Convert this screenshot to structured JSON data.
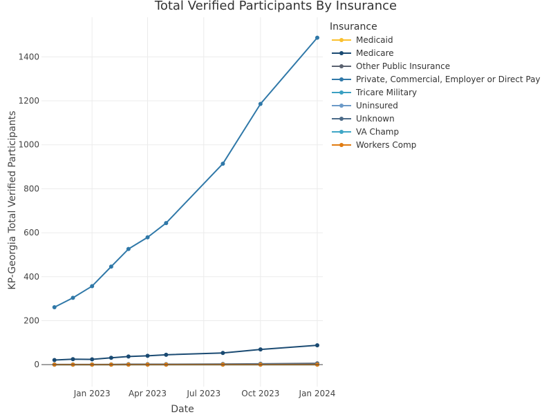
{
  "chart_data": {
    "type": "line",
    "title": "Total Verified Participants By Insurance",
    "xlabel": "Date",
    "ylabel": "KP-Georgia Total Verified Participants",
    "legend_title": "Insurance",
    "legend_position": "top-right",
    "grid": true,
    "xlim": [
      "2022-10-11",
      "2024-01-10"
    ],
    "ylim": [
      -100,
      1580
    ],
    "x_ticks": [
      {
        "value": "2023-01-01",
        "label": "Jan 2023"
      },
      {
        "value": "2023-04-01",
        "label": "Apr 2023"
      },
      {
        "value": "2023-07-01",
        "label": "Jul 2023"
      },
      {
        "value": "2023-10-01",
        "label": "Oct 2023"
      },
      {
        "value": "2024-01-01",
        "label": "Jan 2024"
      }
    ],
    "y_ticks": [
      0,
      200,
      400,
      600,
      800,
      1000,
      1200,
      1400
    ],
    "x": [
      "2022-11-01",
      "2022-12-01",
      "2023-01-01",
      "2023-02-01",
      "2023-03-01",
      "2023-04-01",
      "2023-05-01",
      "2023-08-01",
      "2023-10-01",
      "2024-01-01"
    ],
    "series": [
      {
        "name": "Medicaid",
        "color": "#fbc02d",
        "values": [
          0,
          0,
          0,
          0,
          0,
          0,
          0,
          0,
          0,
          0
        ]
      },
      {
        "name": "Medicare",
        "color": "#1a4a72",
        "values": [
          21,
          25,
          24,
          31,
          37,
          40,
          45,
          53,
          69,
          88
        ]
      },
      {
        "name": "Other Public Insurance",
        "color": "#5a6270",
        "values": [
          1,
          1,
          1,
          1,
          2,
          2,
          2,
          3,
          4,
          6
        ]
      },
      {
        "name": "Private, Commercial, Employer or Direct Pay",
        "color": "#2f78a8",
        "values": [
          261,
          304,
          357,
          446,
          526,
          579,
          644,
          914,
          1186,
          1487
        ]
      },
      {
        "name": "Tricare Military",
        "color": "#3aa0c2",
        "values": [
          0,
          0,
          0,
          0,
          0,
          0,
          0,
          0,
          0,
          0
        ]
      },
      {
        "name": "Uninsured",
        "color": "#6b9ac8",
        "values": [
          0,
          0,
          0,
          1,
          1,
          1,
          1,
          1,
          2,
          2
        ]
      },
      {
        "name": "Unknown",
        "color": "#4b6a88",
        "values": [
          0,
          0,
          0,
          0,
          1,
          1,
          1,
          1,
          1,
          2
        ]
      },
      {
        "name": "VA Champ",
        "color": "#3ea6c6",
        "values": [
          0,
          0,
          0,
          0,
          0,
          0,
          0,
          0,
          0,
          0
        ]
      },
      {
        "name": "Workers Comp",
        "color": "#e07b10",
        "values": [
          0,
          0,
          0,
          0,
          0,
          0,
          0,
          0,
          0,
          0
        ]
      }
    ]
  }
}
